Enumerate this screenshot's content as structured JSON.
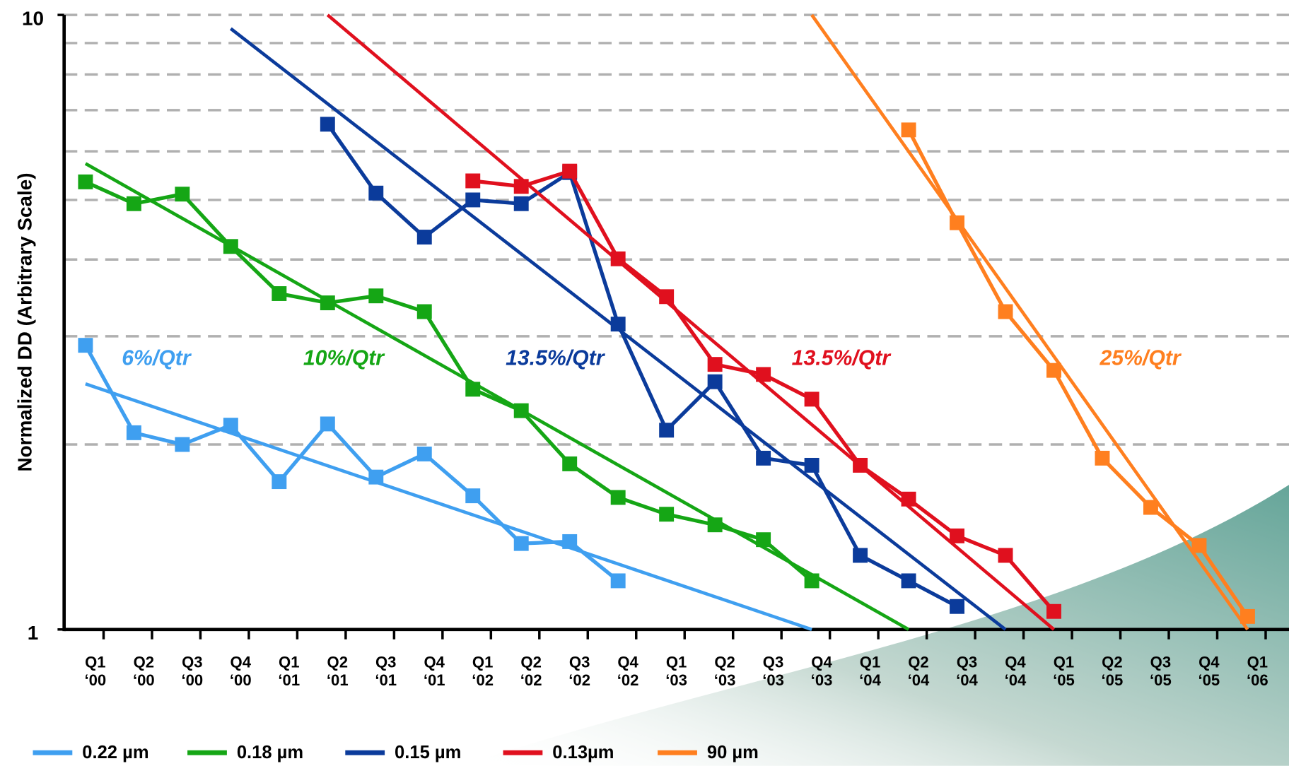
{
  "chart_data": {
    "type": "line",
    "y_label": "Normalized DD (Arbitrary Scale)",
    "categories": [
      "Q1\n‘00",
      "Q2\n‘00",
      "Q3\n‘00",
      "Q4\n‘00",
      "Q1\n‘01",
      "Q2\n‘01",
      "Q3\n‘01",
      "Q4\n‘01",
      "Q1\n‘02",
      "Q2\n‘02",
      "Q3\n‘02",
      "Q4\n‘02",
      "Q1\n‘03",
      "Q2\n‘03",
      "Q3\n‘03",
      "Q4\n‘03",
      "Q1\n‘04",
      "Q2\n‘04",
      "Q3\n‘04",
      "Q4\n‘04",
      "Q1\n‘05",
      "Q2\n‘05",
      "Q3\n‘05",
      "Q4\n‘05",
      "Q1\n‘06"
    ],
    "log_y": true,
    "ylim": [
      1,
      10
    ],
    "yticks": [
      1,
      10
    ],
    "ygrid": [
      2,
      3,
      4,
      5,
      6,
      7,
      8,
      9,
      10
    ],
    "series": [
      {
        "name": "0.22 µm",
        "color": "#3f9ff0",
        "annotation": "6%/Qtr",
        "values": [
          2.9,
          2.09,
          2.0,
          2.15,
          1.74,
          2.16,
          1.77,
          1.93,
          1.65,
          1.38,
          1.39,
          1.2,
          null,
          null,
          null,
          null,
          null,
          null,
          null,
          null,
          null,
          null,
          null,
          null,
          null
        ],
        "trend": {
          "x": [
            "Q1\n‘00",
            "Q4\n‘03"
          ],
          "values": [
            2.51,
            1.0
          ]
        }
      },
      {
        "name": "0.18 µm",
        "color": "#15a615",
        "annotation": "10%/Qtr",
        "values": [
          5.35,
          4.93,
          5.11,
          4.2,
          3.52,
          3.4,
          3.49,
          3.29,
          2.46,
          2.27,
          1.86,
          1.64,
          1.54,
          1.48,
          1.4,
          1.2,
          null,
          null,
          null,
          null,
          null,
          null,
          null,
          null,
          null
        ],
        "trend": {
          "x": [
            "Q1\n‘00",
            "Q2\n‘04"
          ],
          "values": [
            5.73,
            1.0
          ]
        }
      },
      {
        "name": "0.15 µm",
        "color": "#0b3b9b",
        "annotation": "13.5%/Qtr",
        "values": [
          null,
          null,
          null,
          null,
          null,
          6.64,
          5.13,
          4.35,
          5.0,
          4.93,
          5.54,
          3.14,
          2.11,
          2.53,
          1.9,
          1.85,
          1.32,
          1.2,
          1.09,
          null,
          null,
          null,
          null,
          null,
          null
        ],
        "trend": {
          "x": [
            "Q4\n‘00",
            "Q4\n‘04"
          ],
          "values": [
            9.5,
            1.0
          ]
        }
      },
      {
        "name": "0.13µm",
        "color": "#e0101e",
        "annotation": "13.5%/Qtr",
        "values": [
          null,
          null,
          null,
          null,
          null,
          null,
          null,
          null,
          5.37,
          5.26,
          5.57,
          4.01,
          3.48,
          2.7,
          2.6,
          2.37,
          1.85,
          1.63,
          1.42,
          1.32,
          1.07,
          null,
          null,
          null,
          null
        ],
        "trend": {
          "x": [
            "Q2\n‘01",
            "Q1\n‘05"
          ],
          "values": [
            10,
            1.0
          ]
        }
      },
      {
        "name": "90 µm",
        "color": "#ff7f1f",
        "annotation": "25%/Qtr",
        "values": [
          null,
          null,
          null,
          null,
          null,
          null,
          null,
          null,
          null,
          null,
          null,
          null,
          null,
          null,
          null,
          null,
          null,
          6.5,
          4.59,
          3.29,
          2.64,
          1.9,
          1.58,
          1.37,
          1.05
        ],
        "trend": {
          "x": [
            "Q4\n‘03",
            "Q1\n‘06"
          ],
          "values": [
            10,
            1.0
          ]
        }
      }
    ]
  }
}
